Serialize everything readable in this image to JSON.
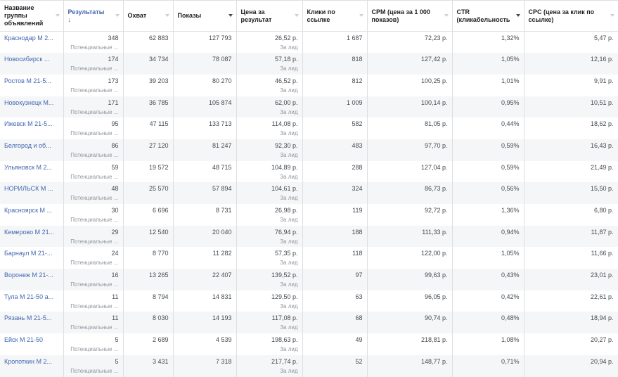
{
  "columns": [
    {
      "label": "Название группы объявлений",
      "sort": "none"
    },
    {
      "label": "Результаты",
      "sort": "desc",
      "active": true
    },
    {
      "label": "Охват",
      "sort": "none"
    },
    {
      "label": "Показы",
      "sort": "dark"
    },
    {
      "label": "Цена за результат",
      "sort": "none"
    },
    {
      "label": "Клики по ссылке",
      "sort": "none"
    },
    {
      "label": "CPM (цена за 1 000 показов)",
      "sort": "none"
    },
    {
      "label": "CTR (кликабельность",
      "sort": "dark"
    },
    {
      "label": "CPC (цена за клик по ссылке)",
      "sort": "none"
    }
  ],
  "result_sub": "Потенциальные ...",
  "cost_sub": "За лид",
  "rows": [
    {
      "name": "Краснодар М 2...",
      "results": "348",
      "reach": "62 883",
      "impressions": "127 793",
      "cost": "26,52 р.",
      "clicks": "1 687",
      "cpm": "72,23 р.",
      "ctr": "1,32%",
      "cpc": "5,47 р."
    },
    {
      "name": "Новосибирск ...",
      "results": "174",
      "reach": "34 734",
      "impressions": "78 087",
      "cost": "57,18 р.",
      "clicks": "818",
      "cpm": "127,42 р.",
      "ctr": "1,05%",
      "cpc": "12,16 р."
    },
    {
      "name": "Ростов М 21-5...",
      "results": "173",
      "reach": "39 203",
      "impressions": "80 270",
      "cost": "46,52 р.",
      "clicks": "812",
      "cpm": "100,25 р.",
      "ctr": "1,01%",
      "cpc": "9,91 р."
    },
    {
      "name": "Новокузнецк М...",
      "results": "171",
      "reach": "36 785",
      "impressions": "105 874",
      "cost": "62,00 р.",
      "clicks": "1 009",
      "cpm": "100,14 р.",
      "ctr": "0,95%",
      "cpc": "10,51 р."
    },
    {
      "name": "Ижевск М 21-5...",
      "results": "95",
      "reach": "47 115",
      "impressions": "133 713",
      "cost": "114,08 р.",
      "clicks": "582",
      "cpm": "81,05 р.",
      "ctr": "0,44%",
      "cpc": "18,62 р."
    },
    {
      "name": "Белгород и об...",
      "results": "86",
      "reach": "27 120",
      "impressions": "81 247",
      "cost": "92,30 р.",
      "clicks": "483",
      "cpm": "97,70 р.",
      "ctr": "0,59%",
      "cpc": "16,43 р."
    },
    {
      "name": "Ульяновск М 2...",
      "results": "59",
      "reach": "19 572",
      "impressions": "48 715",
      "cost": "104,89 р.",
      "clicks": "288",
      "cpm": "127,04 р.",
      "ctr": "0,59%",
      "cpc": "21,49 р."
    },
    {
      "name": "НОРИЛЬСК М ...",
      "results": "48",
      "reach": "25 570",
      "impressions": "57 894",
      "cost": "104,61 р.",
      "clicks": "324",
      "cpm": "86,73 р.",
      "ctr": "0,56%",
      "cpc": "15,50 р."
    },
    {
      "name": "Красноярск М ...",
      "results": "30",
      "reach": "6 696",
      "impressions": "8 731",
      "cost": "26,98 р.",
      "clicks": "119",
      "cpm": "92,72 р.",
      "ctr": "1,36%",
      "cpc": "6,80 р."
    },
    {
      "name": "Кемерово М 21...",
      "results": "29",
      "reach": "12 540",
      "impressions": "20 040",
      "cost": "76,94 р.",
      "clicks": "188",
      "cpm": "111,33 р.",
      "ctr": "0,94%",
      "cpc": "11,87 р."
    },
    {
      "name": "Барнаул М 21-...",
      "results": "24",
      "reach": "8 770",
      "impressions": "11 282",
      "cost": "57,35 р.",
      "clicks": "118",
      "cpm": "122,00 р.",
      "ctr": "1,05%",
      "cpc": "11,66 р."
    },
    {
      "name": "Воронеж М 21-...",
      "results": "16",
      "reach": "13 265",
      "impressions": "22 407",
      "cost": "139,52 р.",
      "clicks": "97",
      "cpm": "99,63 р.",
      "ctr": "0,43%",
      "cpc": "23,01 р."
    },
    {
      "name": "Тула М 21-50 а...",
      "results": "11",
      "reach": "8 794",
      "impressions": "14 831",
      "cost": "129,50 р.",
      "clicks": "63",
      "cpm": "96,05 р.",
      "ctr": "0,42%",
      "cpc": "22,61 р."
    },
    {
      "name": "Рязань М 21-5...",
      "results": "11",
      "reach": "8 030",
      "impressions": "14 193",
      "cost": "117,08 р.",
      "clicks": "68",
      "cpm": "90,74 р.",
      "ctr": "0,48%",
      "cpc": "18,94 р."
    },
    {
      "name": "Ейск М 21-50",
      "results": "5",
      "reach": "2 689",
      "impressions": "4 539",
      "cost": "198,63 р.",
      "clicks": "49",
      "cpm": "218,81 р.",
      "ctr": "1,08%",
      "cpc": "20,27 р."
    },
    {
      "name": "Кропоткин М 2...",
      "results": "5",
      "reach": "3 431",
      "impressions": "7 318",
      "cost": "217,74 р.",
      "clicks": "52",
      "cpm": "148,77 р.",
      "ctr": "0,71%",
      "cpc": "20,94 р."
    }
  ]
}
